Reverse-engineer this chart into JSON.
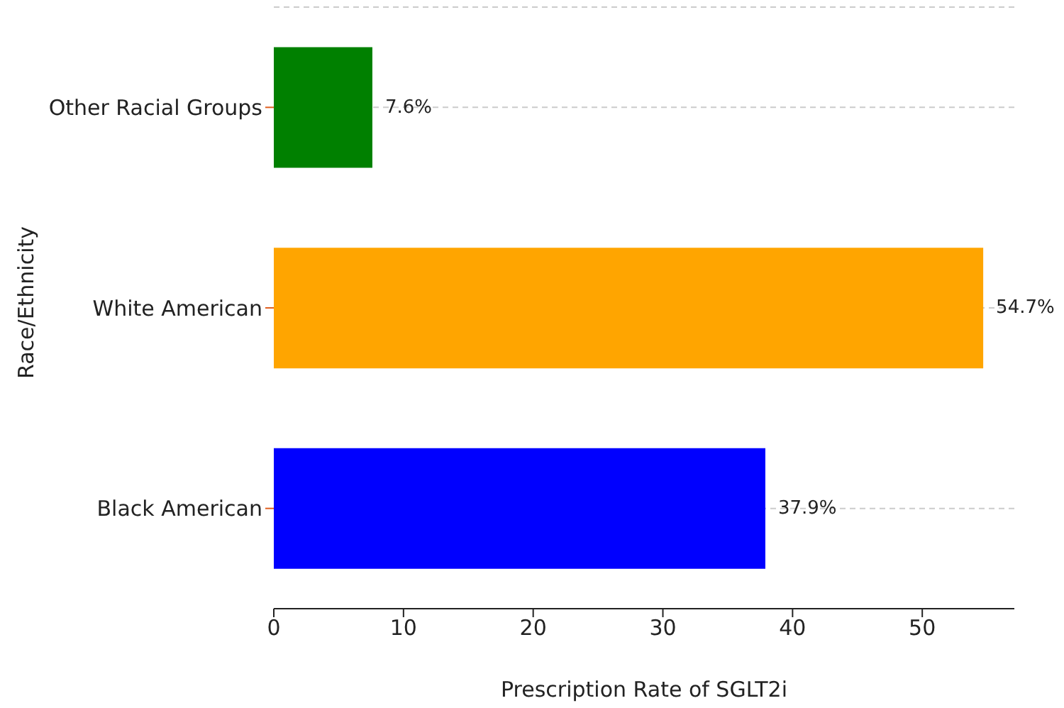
{
  "chart_data": {
    "type": "bar",
    "orientation": "horizontal",
    "xlabel": "Prescription Rate of SGLT2i",
    "ylabel": "Race/Ethnicity",
    "categories": [
      "Other Racial Groups",
      "White American",
      "Black American"
    ],
    "values": [
      7.6,
      54.7,
      37.9
    ],
    "colors": [
      "#008000",
      "#ffa500",
      "#0000ff"
    ],
    "value_labels": [
      "7.6%",
      "54.7%",
      "37.9%"
    ],
    "xlim": [
      0,
      57.1
    ],
    "xticks": [
      0,
      10,
      20,
      30,
      40,
      50
    ],
    "grid": "y"
  }
}
